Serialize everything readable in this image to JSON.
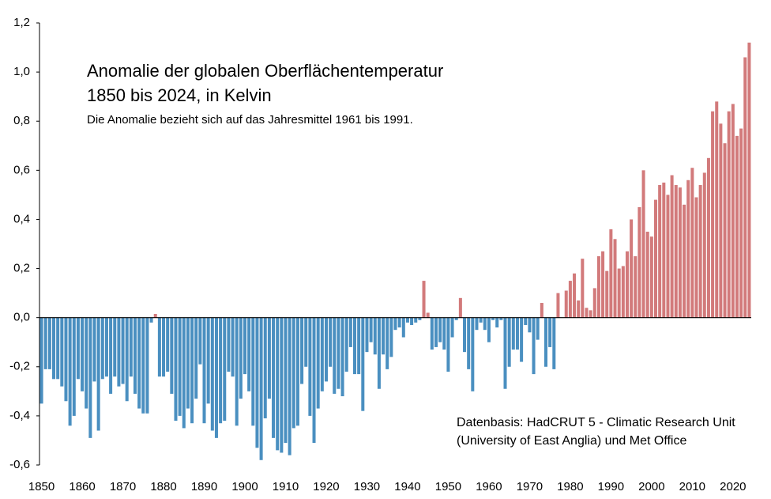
{
  "chart_data": {
    "type": "bar",
    "title": "Anomalie der globalen Oberflächentemperatur",
    "title_line2": "1850 bis 2024, in Kelvin",
    "subtitle": "Die Anomalie bezieht sich auf das Jahresmittel 1961 bis 1991.",
    "annotation": [
      "Datenbasis: HadCRUT 5 - Climatic Research Unit",
      "(University of East Anglia) und Met Office"
    ],
    "x": [
      1850,
      1851,
      1852,
      1853,
      1854,
      1855,
      1856,
      1857,
      1858,
      1859,
      1860,
      1861,
      1862,
      1863,
      1864,
      1865,
      1866,
      1867,
      1868,
      1869,
      1870,
      1871,
      1872,
      1873,
      1874,
      1875,
      1876,
      1877,
      1878,
      1879,
      1880,
      1881,
      1882,
      1883,
      1884,
      1885,
      1886,
      1887,
      1888,
      1889,
      1890,
      1891,
      1892,
      1893,
      1894,
      1895,
      1896,
      1897,
      1898,
      1899,
      1900,
      1901,
      1902,
      1903,
      1904,
      1905,
      1906,
      1907,
      1908,
      1909,
      1910,
      1911,
      1912,
      1913,
      1914,
      1915,
      1916,
      1917,
      1918,
      1919,
      1920,
      1921,
      1922,
      1923,
      1924,
      1925,
      1926,
      1927,
      1928,
      1929,
      1930,
      1931,
      1932,
      1933,
      1934,
      1935,
      1936,
      1937,
      1938,
      1939,
      1940,
      1941,
      1942,
      1943,
      1944,
      1945,
      1946,
      1947,
      1948,
      1949,
      1950,
      1951,
      1952,
      1953,
      1954,
      1955,
      1956,
      1957,
      1958,
      1959,
      1960,
      1961,
      1962,
      1963,
      1964,
      1965,
      1966,
      1967,
      1968,
      1969,
      1970,
      1971,
      1972,
      1973,
      1974,
      1975,
      1976,
      1977,
      1978,
      1979,
      1980,
      1981,
      1982,
      1983,
      1984,
      1985,
      1986,
      1987,
      1988,
      1989,
      1990,
      1991,
      1992,
      1993,
      1994,
      1995,
      1996,
      1997,
      1998,
      1999,
      2000,
      2001,
      2002,
      2003,
      2004,
      2005,
      2006,
      2007,
      2008,
      2009,
      2010,
      2011,
      2012,
      2013,
      2014,
      2015,
      2016,
      2017,
      2018,
      2019,
      2020,
      2021,
      2022,
      2023,
      2024
    ],
    "values": [
      -0.35,
      -0.21,
      -0.21,
      -0.25,
      -0.25,
      -0.28,
      -0.34,
      -0.44,
      -0.4,
      -0.25,
      -0.3,
      -0.37,
      -0.49,
      -0.26,
      -0.46,
      -0.25,
      -0.24,
      -0.31,
      -0.24,
      -0.28,
      -0.27,
      -0.34,
      -0.24,
      -0.31,
      -0.37,
      -0.39,
      -0.39,
      -0.02,
      0.015,
      -0.24,
      -0.24,
      -0.22,
      -0.31,
      -0.42,
      -0.4,
      -0.45,
      -0.37,
      -0.43,
      -0.33,
      -0.19,
      -0.43,
      -0.35,
      -0.46,
      -0.49,
      -0.43,
      -0.42,
      -0.22,
      -0.24,
      -0.44,
      -0.33,
      -0.23,
      -0.3,
      -0.44,
      -0.53,
      -0.58,
      -0.41,
      -0.33,
      -0.49,
      -0.54,
      -0.55,
      -0.51,
      -0.56,
      -0.45,
      -0.44,
      -0.27,
      -0.2,
      -0.4,
      -0.51,
      -0.37,
      -0.3,
      -0.26,
      -0.2,
      -0.31,
      -0.29,
      -0.32,
      -0.22,
      -0.12,
      -0.23,
      -0.23,
      -0.38,
      -0.14,
      -0.1,
      -0.15,
      -0.29,
      -0.15,
      -0.21,
      -0.16,
      -0.05,
      -0.04,
      -0.08,
      -0.02,
      -0.03,
      -0.02,
      -0.01,
      0.15,
      0.02,
      -0.13,
      -0.12,
      -0.1,
      -0.13,
      -0.22,
      -0.08,
      -0.01,
      0.08,
      -0.14,
      -0.21,
      -0.3,
      -0.05,
      -0.02,
      -0.05,
      -0.1,
      -0.01,
      -0.04,
      -0.01,
      -0.29,
      -0.2,
      -0.13,
      -0.13,
      -0.18,
      -0.03,
      -0.06,
      -0.23,
      -0.09,
      0.06,
      -0.2,
      -0.12,
      -0.21,
      0.1,
      0.0,
      0.11,
      0.15,
      0.18,
      0.07,
      0.24,
      0.04,
      0.03,
      0.12,
      0.25,
      0.27,
      0.19,
      0.36,
      0.32,
      0.2,
      0.21,
      0.27,
      0.4,
      0.25,
      0.45,
      0.6,
      0.35,
      0.33,
      0.48,
      0.54,
      0.55,
      0.5,
      0.58,
      0.54,
      0.53,
      0.46,
      0.56,
      0.61,
      0.49,
      0.54,
      0.59,
      0.65,
      0.84,
      0.88,
      0.79,
      0.71,
      0.84,
      0.87,
      0.74,
      0.77,
      1.06,
      1.12
    ],
    "colors": {
      "positive": "#d27a7b",
      "negative": "#4a8fc0"
    },
    "xlim": [
      1849.5,
      2024.5
    ],
    "xticks": [
      1850,
      1860,
      1870,
      1880,
      1890,
      1900,
      1910,
      1920,
      1930,
      1940,
      1950,
      1960,
      1970,
      1980,
      1990,
      2000,
      2010,
      2020
    ],
    "ylim": [
      -0.6,
      1.2
    ],
    "yticks": [
      {
        "value": -0.6,
        "label": "-0,6"
      },
      {
        "value": -0.4,
        "label": "-0,4"
      },
      {
        "value": -0.2,
        "label": "-0,2"
      },
      {
        "value": 0,
        "label": "0,0"
      },
      {
        "value": 0.2,
        "label": "0,2"
      },
      {
        "value": 0.4,
        "label": "0,4"
      },
      {
        "value": 0.6,
        "label": "0,6"
      },
      {
        "value": 0.8,
        "label": "0,8"
      },
      {
        "value": 1.0,
        "label": "1,0"
      },
      {
        "value": 1.2,
        "label": "1,2"
      }
    ]
  }
}
